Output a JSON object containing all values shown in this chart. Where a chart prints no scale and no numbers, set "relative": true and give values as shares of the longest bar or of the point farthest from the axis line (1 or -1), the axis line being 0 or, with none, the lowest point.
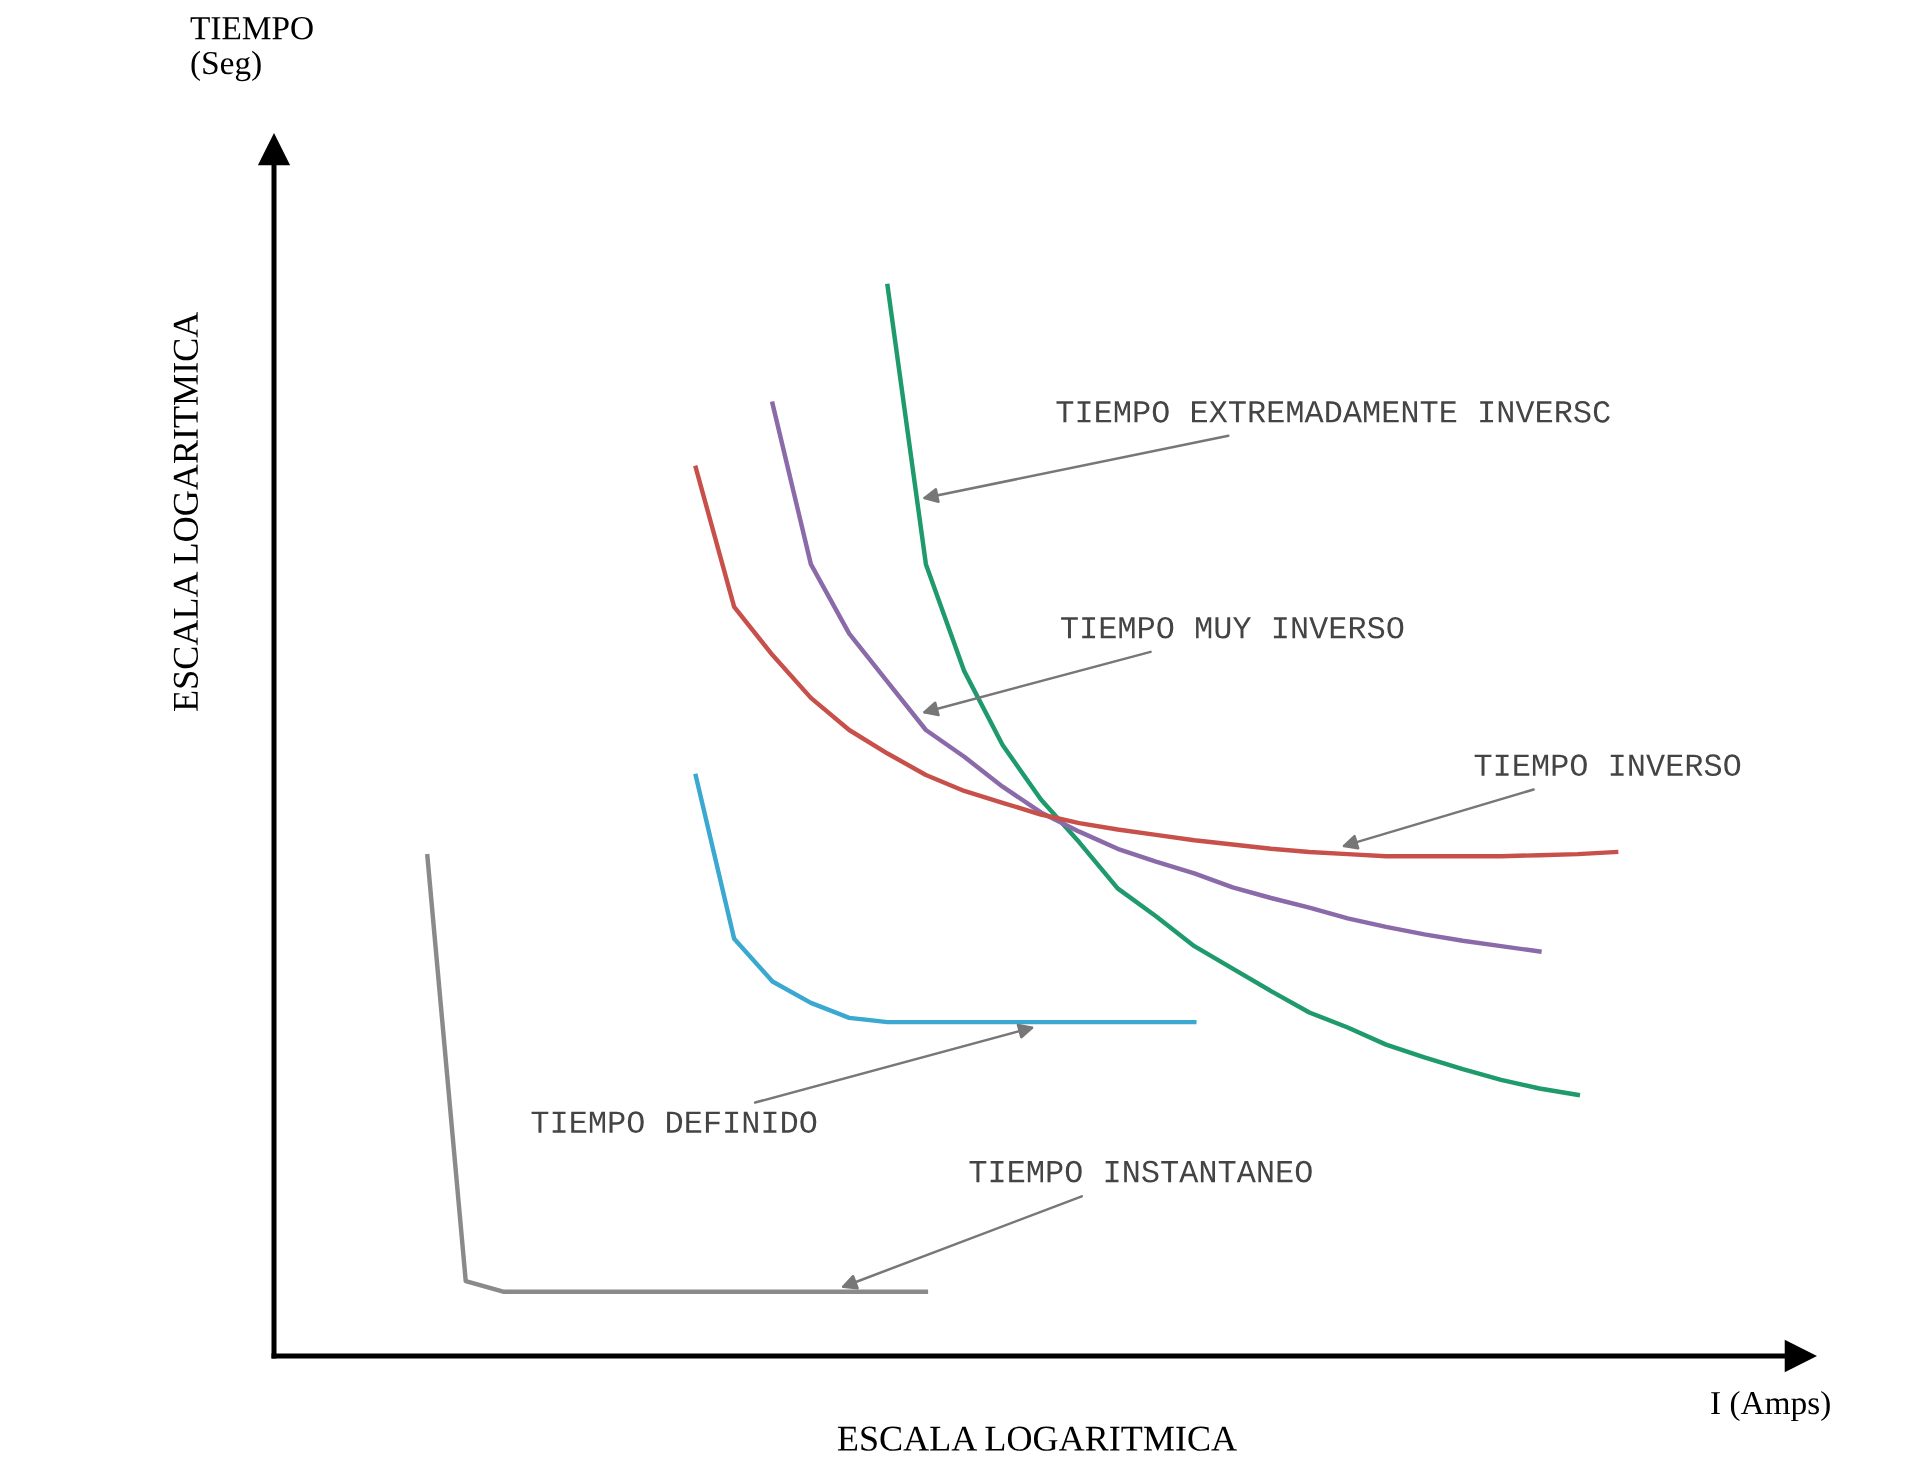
{
  "chart_data": {
    "type": "line",
    "relative": true,
    "xlabel": "ESCALA LOGARITMICA",
    "ylabel": "ESCALA LOGARITMICA",
    "marker": "none",
    "line_style": "solid",
    "categories": [
      null,
      null,
      null,
      null,
      null,
      null,
      null,
      null,
      null,
      null,
      null,
      null,
      null,
      null,
      null,
      null,
      null,
      null,
      null,
      null,
      null,
      null,
      null,
      null,
      null,
      null,
      null,
      null,
      null,
      null,
      null,
      null,
      null,
      null,
      null,
      null
    ],
    "series": [
      {
        "color": "#1f9a6c",
        "values": [
          null,
          null,
          null,
          null,
          null,
          null,
          null,
          null,
          null,
          null,
          null,
          null,
          null,
          null,
          null,
          null,
          1.0,
          0.74,
          0.64,
          0.571,
          0.52,
          0.48,
          0.437,
          0.411,
          0.383,
          0.362,
          0.341,
          0.321,
          0.307,
          0.291,
          0.279,
          0.268,
          0.258,
          0.25,
          0.244,
          null
        ]
      },
      {
        "color": "#8a6aa8",
        "values": [
          null,
          null,
          null,
          null,
          null,
          null,
          null,
          null,
          null,
          null,
          null,
          null,
          null,
          0.89,
          0.74,
          0.675,
          0.63,
          0.585,
          0.56,
          0.532,
          0.508,
          0.49,
          0.474,
          0.462,
          0.451,
          0.438,
          0.428,
          0.419,
          0.409,
          0.401,
          0.394,
          0.388,
          0.383,
          0.378,
          null,
          null
        ]
      },
      {
        "color": "#c8504a",
        "values": [
          null,
          null,
          null,
          null,
          null,
          null,
          null,
          null,
          null,
          null,
          null,
          0.83,
          0.7,
          0.655,
          0.615,
          0.585,
          0.563,
          0.543,
          0.528,
          0.517,
          0.506,
          0.498,
          0.492,
          0.487,
          0.482,
          0.478,
          0.474,
          0.471,
          0.469,
          0.467,
          0.467,
          0.467,
          0.467,
          0.468,
          0.469,
          0.471
        ]
      },
      {
        "color": "#3aa8d0",
        "values": [
          null,
          null,
          null,
          null,
          null,
          null,
          null,
          null,
          null,
          null,
          null,
          0.542,
          0.39,
          0.35,
          0.33,
          0.316,
          0.312,
          0.312,
          0.312,
          0.312,
          0.312,
          0.312,
          0.312,
          0.312,
          0.312,
          null,
          null,
          null,
          null,
          null,
          null,
          null,
          null,
          null,
          null,
          null
        ]
      },
      {
        "color": "#8a8a8a",
        "values": [
          null,
          null,
          null,
          null,
          0.467,
          0.07,
          0.06,
          0.06,
          0.06,
          0.06,
          0.06,
          0.06,
          0.06,
          0.06,
          0.06,
          0.06,
          0.06,
          0.06,
          null,
          null,
          null,
          null,
          null,
          null,
          null,
          null,
          null,
          null,
          null,
          null,
          null,
          null,
          null,
          null,
          null,
          null
        ]
      }
    ],
    "annotations": [
      "TIEMPO EXTREMADAMENTE INVERSC",
      "TIEMPO MUY INVERSO",
      "TIEMPO INVERSO",
      "TIEMPO DEFINIDO",
      "TIEMPO INSTANTANEO",
      "TIEMPO\n(Seg)",
      "I (Amps)"
    ]
  }
}
